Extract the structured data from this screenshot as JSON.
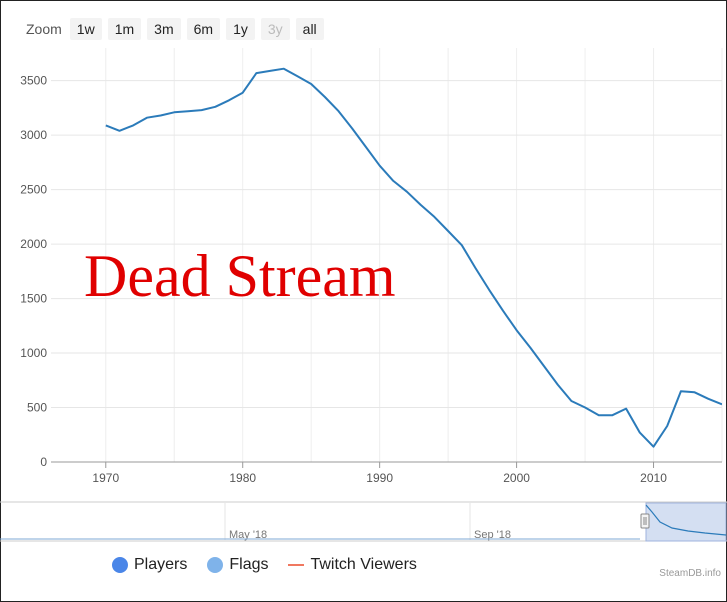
{
  "zoom": {
    "label": "Zoom",
    "buttons": [
      {
        "label": "1w",
        "enabled": true
      },
      {
        "label": "1m",
        "enabled": true
      },
      {
        "label": "3m",
        "enabled": true
      },
      {
        "label": "6m",
        "enabled": true
      },
      {
        "label": "1y",
        "enabled": true
      },
      {
        "label": "3y",
        "enabled": false
      },
      {
        "label": "all",
        "enabled": true
      }
    ]
  },
  "overlay_text": "Dead Stream",
  "chart_data": {
    "type": "line",
    "title": "",
    "xlabel": "",
    "ylabel": "",
    "xlim": [
      1966,
      2015
    ],
    "ylim": [
      0,
      3800
    ],
    "grid": true,
    "x_ticks": [
      "1970",
      "1980",
      "1990",
      "2000",
      "2010"
    ],
    "y_ticks": [
      "0",
      "500",
      "1000",
      "1500",
      "2000",
      "2500",
      "3000",
      "3500"
    ],
    "line_color": "#2b7bba",
    "series": [
      {
        "name": "Players",
        "x": [
          1970,
          1971,
          1972,
          1973,
          1974,
          1975,
          1976,
          1977,
          1978,
          1979,
          1980,
          1981,
          1982,
          1983,
          1984,
          1985,
          1986,
          1987,
          1988,
          1989,
          1990,
          1991,
          1992,
          1993,
          1994,
          1995,
          1996,
          1997,
          1998,
          1999,
          2000,
          2001,
          2002,
          2003,
          2004,
          2005,
          2006,
          2007,
          2008,
          2009,
          2010,
          2011,
          2012,
          2013,
          2014,
          2015
        ],
        "values": [
          3090,
          3040,
          3090,
          3160,
          3180,
          3210,
          3220,
          3230,
          3260,
          3320,
          3390,
          3570,
          3590,
          3610,
          3540,
          3470,
          3350,
          3220,
          3060,
          2890,
          2720,
          2580,
          2480,
          2360,
          2250,
          2120,
          1990,
          1780,
          1580,
          1390,
          1210,
          1050,
          880,
          710,
          560,
          500,
          430,
          430,
          490,
          270,
          140,
          330,
          650,
          640,
          580,
          530
        ]
      }
    ]
  },
  "navigator": {
    "labels": [
      "n '18",
      "May '18",
      "Sep '18"
    ]
  },
  "legend": {
    "items": [
      {
        "label": "Players",
        "color": "#4a86e8",
        "kind": "dot"
      },
      {
        "label": "Flags",
        "color": "#7fb3ea",
        "kind": "dot"
      },
      {
        "label": "Twitch Viewers",
        "color": "#f07860",
        "kind": "line"
      }
    ]
  },
  "credit": "SteamDB.info"
}
